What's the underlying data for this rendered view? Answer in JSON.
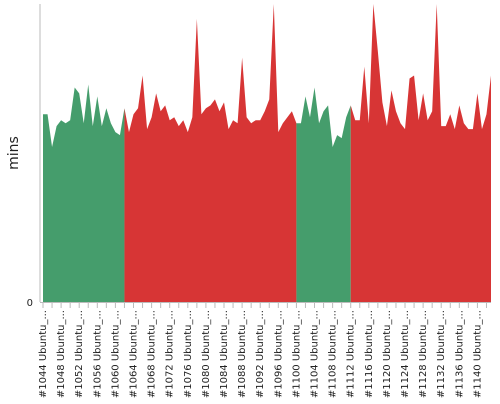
{
  "chart_data": {
    "type": "area",
    "ylabel": "mins",
    "ylim": [
      0,
      100
    ],
    "yticks": [
      {
        "value": 0,
        "label": "0"
      }
    ],
    "x_start_build": 1044,
    "x_label_step": 4,
    "x_label_suffix": " Ubuntu_...",
    "x_labels": [
      "#1044 Ubuntu_...",
      "#1048 Ubuntu_...",
      "#1052 Ubuntu_...",
      "#1056 Ubuntu_...",
      "#1060 Ubuntu_...",
      "#1064 Ubuntu_...",
      "#1068 Ubuntu_...",
      "#1072 Ubuntu_...",
      "#1076 Ubuntu_...",
      "#1080 Ubuntu_...",
      "#1084 Ubuntu_...",
      "#1088 Ubuntu_...",
      "#1092 Ubuntu_...",
      "#1096 Ubuntu_...",
      "#1100 Ubuntu_...",
      "#1104 Ubuntu_...",
      "#1108 Ubuntu_...",
      "#1112 Ubuntu_...",
      "#1116 Ubuntu_...",
      "#1120 Ubuntu_...",
      "#1124 Ubuntu_...",
      "#1128 Ubuntu_...",
      "#1132 Ubuntu_...",
      "#1136 Ubuntu_...",
      "#1140 Ubuntu_..."
    ],
    "values": [
      63,
      63,
      52,
      59,
      61,
      60,
      61,
      72,
      70,
      60,
      73,
      59,
      69,
      59,
      65,
      60,
      57,
      56,
      65,
      57,
      63,
      65,
      76,
      58,
      62,
      70,
      64,
      66,
      61,
      62,
      59,
      61,
      57,
      62,
      95,
      63,
      65,
      66,
      68,
      64,
      67,
      58,
      61,
      60,
      82,
      62,
      60,
      61,
      61,
      64,
      68,
      100,
      57,
      60,
      62,
      64,
      60,
      60,
      69,
      62,
      72,
      60,
      64,
      66,
      52,
      56,
      55,
      62,
      66,
      61,
      61,
      79,
      60,
      100,
      84,
      67,
      59,
      71,
      64,
      60,
      58,
      75,
      76,
      61,
      70,
      61,
      64,
      100,
      59,
      59,
      63,
      58,
      66,
      60,
      58,
      58,
      70,
      58,
      63,
      76
    ],
    "statuses": [
      "pass",
      "pass",
      "pass",
      "pass",
      "pass",
      "pass",
      "pass",
      "pass",
      "pass",
      "pass",
      "pass",
      "pass",
      "pass",
      "pass",
      "pass",
      "pass",
      "pass",
      "pass",
      "fail",
      "fail",
      "fail",
      "fail",
      "fail",
      "fail",
      "fail",
      "fail",
      "fail",
      "fail",
      "fail",
      "fail",
      "fail",
      "fail",
      "fail",
      "fail",
      "fail",
      "fail",
      "fail",
      "fail",
      "fail",
      "fail",
      "fail",
      "fail",
      "fail",
      "fail",
      "fail",
      "fail",
      "fail",
      "fail",
      "fail",
      "fail",
      "fail",
      "fail",
      "fail",
      "fail",
      "fail",
      "fail",
      "pass",
      "pass",
      "pass",
      "pass",
      "pass",
      "pass",
      "pass",
      "pass",
      "pass",
      "pass",
      "pass",
      "pass",
      "fail",
      "fail",
      "fail",
      "fail",
      "fail",
      "fail",
      "fail",
      "fail",
      "fail",
      "fail",
      "fail",
      "fail",
      "fail",
      "fail",
      "fail",
      "fail",
      "fail",
      "fail",
      "fail",
      "fail",
      "fail",
      "fail",
      "fail",
      "fail",
      "fail",
      "fail",
      "fail",
      "fail",
      "fail",
      "fail",
      "fail",
      "fail"
    ],
    "colors": {
      "pass": "#459d6c",
      "fail": "#d73535",
      "axis": "#bbbbbb",
      "text": "#222222"
    },
    "grid": false
  }
}
